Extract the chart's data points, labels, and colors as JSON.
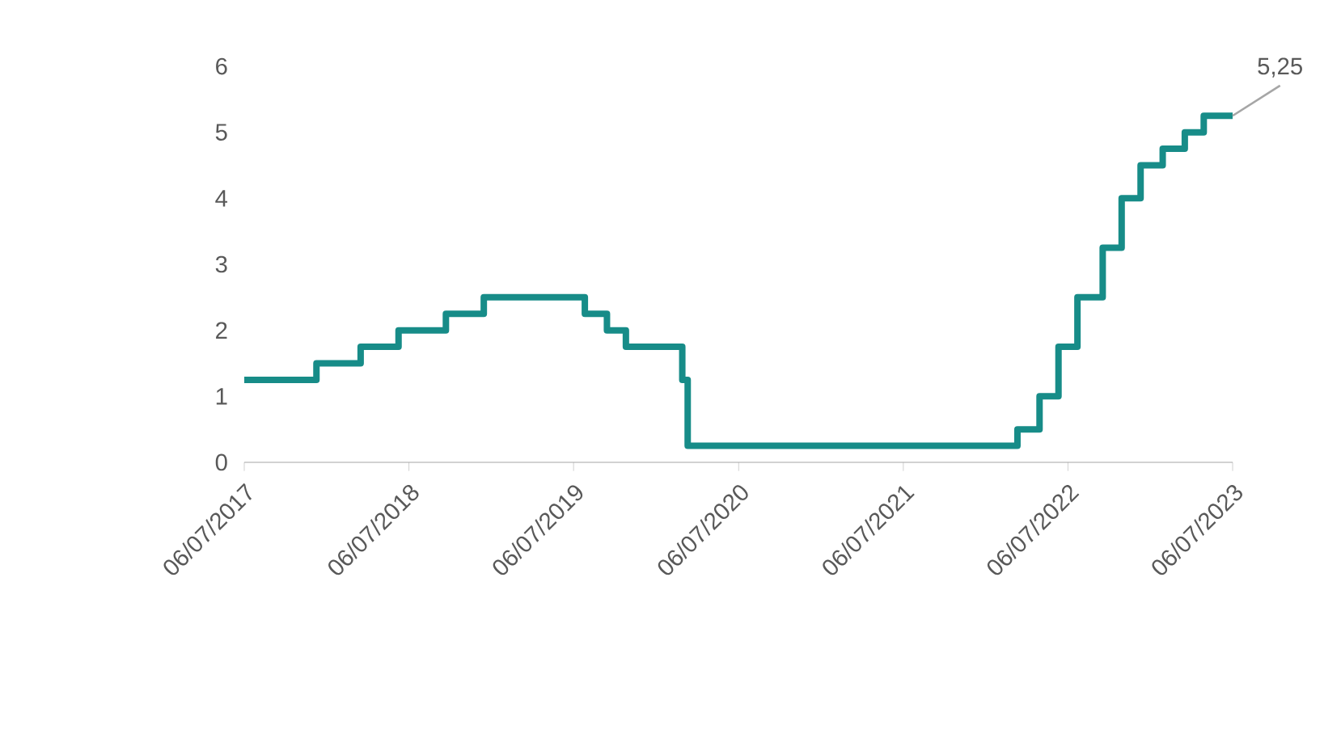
{
  "chart_data": {
    "type": "step",
    "color": "#178c88",
    "x": [
      "2017-07-06",
      "2017-12-13",
      "2018-03-21",
      "2018-06-13",
      "2018-09-26",
      "2018-12-19",
      "2019-07-31",
      "2019-09-18",
      "2019-10-30",
      "2020-03-03",
      "2020-03-15",
      "2022-03-16",
      "2022-05-04",
      "2022-06-15",
      "2022-07-27",
      "2022-09-21",
      "2022-11-02",
      "2022-12-14",
      "2023-02-01",
      "2023-03-22",
      "2023-05-03",
      "2023-07-06"
    ],
    "values": [
      1.25,
      1.5,
      1.75,
      2.0,
      2.25,
      2.5,
      2.25,
      2.0,
      1.75,
      1.25,
      0.25,
      0.5,
      1.0,
      1.75,
      2.5,
      3.25,
      4.0,
      4.5,
      4.75,
      5.0,
      5.25,
      5.25
    ],
    "xlim": [
      "2017-07-06",
      "2023-07-06"
    ],
    "xticks": [
      {
        "value": "2017-07-06",
        "label": "06/07/2017"
      },
      {
        "value": "2018-07-06",
        "label": "06/07/2018"
      },
      {
        "value": "2019-07-06",
        "label": "06/07/2019"
      },
      {
        "value": "2020-07-06",
        "label": "06/07/2020"
      },
      {
        "value": "2021-07-06",
        "label": "06/07/2021"
      },
      {
        "value": "2022-07-06",
        "label": "06/07/2022"
      },
      {
        "value": "2023-07-06",
        "label": "06/07/2023"
      }
    ],
    "ylim": [
      0,
      6
    ],
    "yticks": [
      0,
      1,
      2,
      3,
      4,
      5,
      6
    ],
    "grid": false,
    "marker": "none",
    "line_style": "solid",
    "annotations": [
      {
        "text": "5,25",
        "x": "2023-07-06",
        "y": 5.25
      }
    ]
  }
}
